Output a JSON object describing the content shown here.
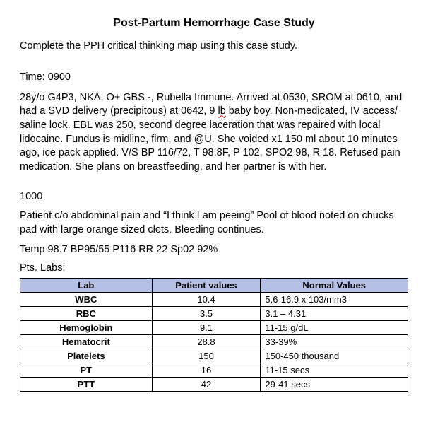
{
  "title": "Post-Partum Hemorrhage Case Study",
  "intro": "Complete the PPH critical thinking map using this case study.",
  "time1_label": "Time: 0900",
  "paragraph1_a": "28y/o G4P3, NKA, O+ GBS -, Rubella Immune. Arrived at 0530, SROM at 0610, and had a SVD delivery (precipitous) at 0642, 9 ",
  "paragraph1_lb": "lb",
  "paragraph1_b": " baby boy. Non-medicated, IV access/ saline lock. EBL was 250, second degree laceration that was repaired with local lidocaine. Fundus is midline, firm, and @U. She voided x1 150 ml about 10 minutes ago, ice pack applied. V/S BP 116/72, T 98.8F, P 102, SPO2 98, R 18. Refused pain medication. She plans on breastfeeding, and her partner is with her.",
  "time2_label": "1000",
  "paragraph2": "Patient c/o abdominal pain and “I think I am peeing” Pool of blood noted on chucks pad with large orange sized clots. Bleeding continues.",
  "vitals": "Temp 98.7 BP95/55 P116 RR 22 Sp02 92%",
  "pts_labs": "Pts. Labs:",
  "table": {
    "header_bg": "#b4c0e4",
    "border_color": "#000000",
    "columns": [
      "Lab",
      "Patient values",
      "Normal Values"
    ],
    "rows": [
      {
        "lab": "WBC",
        "pv": "10.4",
        "nv": "5.6-16.9 x 103/mm3"
      },
      {
        "lab": "RBC",
        "pv": "3.5",
        "nv": "3.1 – 4.31"
      },
      {
        "lab": "Hemoglobin",
        "pv": "9.1",
        "nv": "11-15 g/dL"
      },
      {
        "lab": "Hematocrit",
        "pv": "28.8",
        "nv": "33-39%"
      },
      {
        "lab": "Platelets",
        "pv": "150",
        "nv": "150-450 thousand"
      },
      {
        "lab": "PT",
        "pv": "16",
        "nv": "11-15 secs"
      },
      {
        "lab": "PTT",
        "pv": "42",
        "nv": "29-41 secs"
      }
    ],
    "col_widths": [
      "34%",
      "28%",
      "38%"
    ]
  }
}
